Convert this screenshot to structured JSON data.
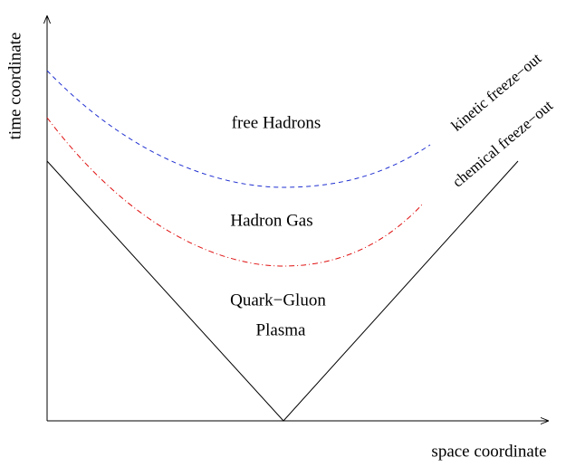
{
  "axes": {
    "y_label": "time coordinate",
    "x_label": "space coordinate"
  },
  "regions": {
    "hadrons": "free Hadrons",
    "gas": "Hadron Gas",
    "qgp_line1": "Quark−Gluon",
    "qgp_line2": "Plasma"
  },
  "curves": {
    "kinetic": "kinetic freeze−out",
    "chemical": "chemical freeze−out"
  }
}
